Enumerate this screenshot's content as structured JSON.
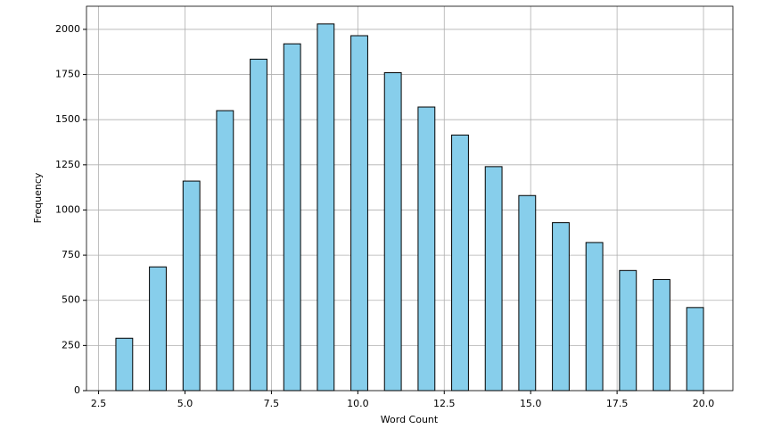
{
  "chart_data": {
    "type": "histogram",
    "xlabel": "Word Count",
    "ylabel": "Frequency",
    "bins": [
      3,
      3.486,
      3.971,
      4.457,
      4.943,
      5.429,
      5.914,
      6.4,
      6.886,
      7.371,
      7.857,
      8.343,
      8.829,
      9.314,
      9.8,
      10.286,
      10.771,
      11.257,
      11.743,
      12.229,
      12.714,
      13.2,
      13.686,
      14.171,
      14.657,
      15.143,
      15.629,
      16.114,
      16.6,
      17.086,
      17.571,
      18.057,
      18.543,
      19.029,
      19.514,
      20
    ],
    "values": [
      290,
      0,
      685,
      0,
      1160,
      0,
      1550,
      0,
      1835,
      0,
      1920,
      0,
      2030,
      0,
      1965,
      0,
      1760,
      0,
      1570,
      0,
      1415,
      0,
      1240,
      0,
      1080,
      0,
      930,
      0,
      820,
      0,
      665,
      0,
      615,
      0,
      460
    ],
    "color": "#87ceeb",
    "edgecolor": "#000000",
    "xlim": [
      2.15,
      20.85
    ],
    "ylim": [
      0,
      2128
    ],
    "xticks": [
      2.5,
      {
        "value": 5,
        "label": "5.0"
      },
      7.5,
      {
        "value": 10,
        "label": "10.0"
      },
      12.5,
      {
        "value": 15,
        "label": "15.0"
      },
      17.5,
      {
        "value": 20,
        "label": "20.0"
      }
    ],
    "yticks": [
      0,
      250,
      500,
      750,
      1000,
      1250,
      1500,
      1750,
      2000
    ],
    "grid": true
  }
}
